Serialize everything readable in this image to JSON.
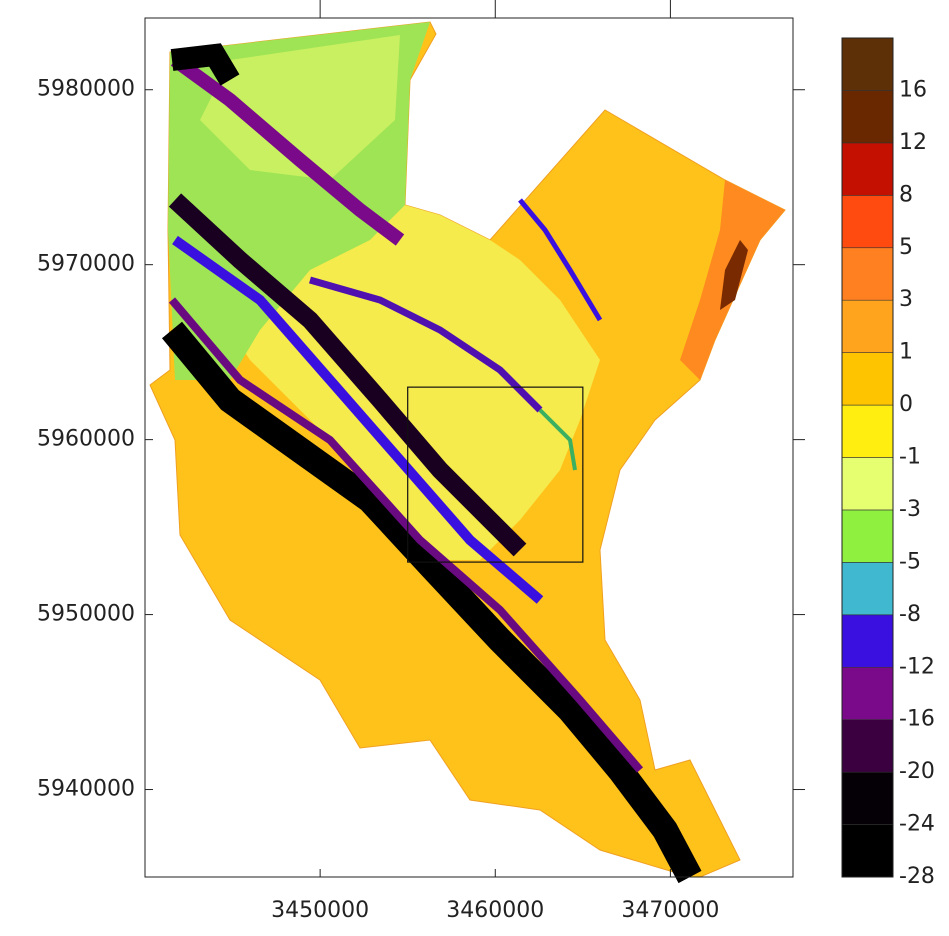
{
  "chart_data": {
    "type": "map",
    "xlim": [
      3440000,
      3477000
    ],
    "ylim": [
      5935000,
      5984100
    ],
    "xticks": [
      3450000,
      3460000,
      3470000
    ],
    "yticks": [
      5980000,
      5970000,
      5960000,
      5950000,
      5940000
    ],
    "box": {
      "x": [
        3455000,
        3465000
      ],
      "y": [
        5953000,
        5963000
      ]
    },
    "colorbar": {
      "levels": [
        -28,
        -24,
        -20,
        -16,
        -12,
        -8,
        -5,
        -3,
        -1,
        0,
        1,
        3,
        5,
        8,
        12,
        16
      ],
      "colors": [
        "#000000",
        "#050005",
        "#3a0040",
        "#7a0a8a",
        "#3a10e0",
        "#40b8d0",
        "#90f040",
        "#e6ff70",
        "#ffee10",
        "#ffc400",
        "#ffa41c",
        "#ff8020",
        "#ff4a10",
        "#c41000",
        "#6a2800",
        "#5e3008"
      ]
    }
  }
}
